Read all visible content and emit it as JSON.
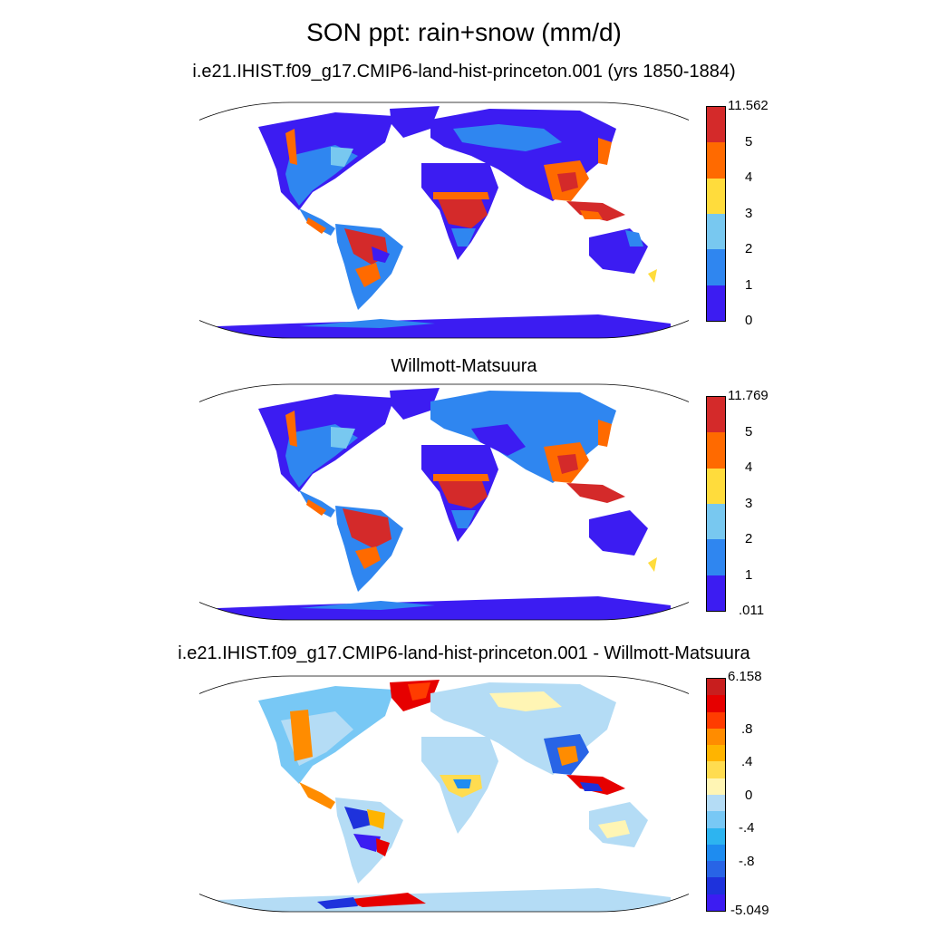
{
  "title": "SON ppt: rain+snow (mm/d)",
  "panels": [
    {
      "id": "model",
      "title": "i.e21.IHIST.f09_g17.CMIP6-land-hist-princeton.001 (yrs 1850-1884)",
      "colorbar": {
        "labels": [
          "11.562",
          "5",
          "4",
          "3",
          "2",
          "1",
          "0"
        ],
        "colors": [
          "#d42a2a",
          "#ff6a00",
          "#ffdc3c",
          "#78c8f0",
          "#2f86f0",
          "#3c1cf2"
        ]
      }
    },
    {
      "id": "obs",
      "title": "Willmott-Matsuura",
      "colorbar": {
        "labels": [
          "11.769",
          "5",
          "4",
          "3",
          "2",
          "1",
          ".011"
        ],
        "colors": [
          "#d42a2a",
          "#ff6a00",
          "#ffdc3c",
          "#78c8f0",
          "#2f86f0",
          "#3c1cf2"
        ]
      }
    },
    {
      "id": "diff",
      "title": "i.e21.IHIST.f09_g17.CMIP6-land-hist-princeton.001 - Willmott-Matsuura",
      "colorbar": {
        "labels": [
          "6.158",
          ".8",
          ".4",
          "0",
          "-.4",
          "-.8",
          "-5.049"
        ],
        "colors": [
          "#c81e1e",
          "#e60000",
          "#ff3c00",
          "#ff8c00",
          "#ffb400",
          "#ffdc50",
          "#fff5b4",
          "#b4dcf5",
          "#78c8f5",
          "#2db4f0",
          "#1e8cf0",
          "#2864e6",
          "#1e32dc",
          "#3c1cf2"
        ]
      }
    }
  ]
}
